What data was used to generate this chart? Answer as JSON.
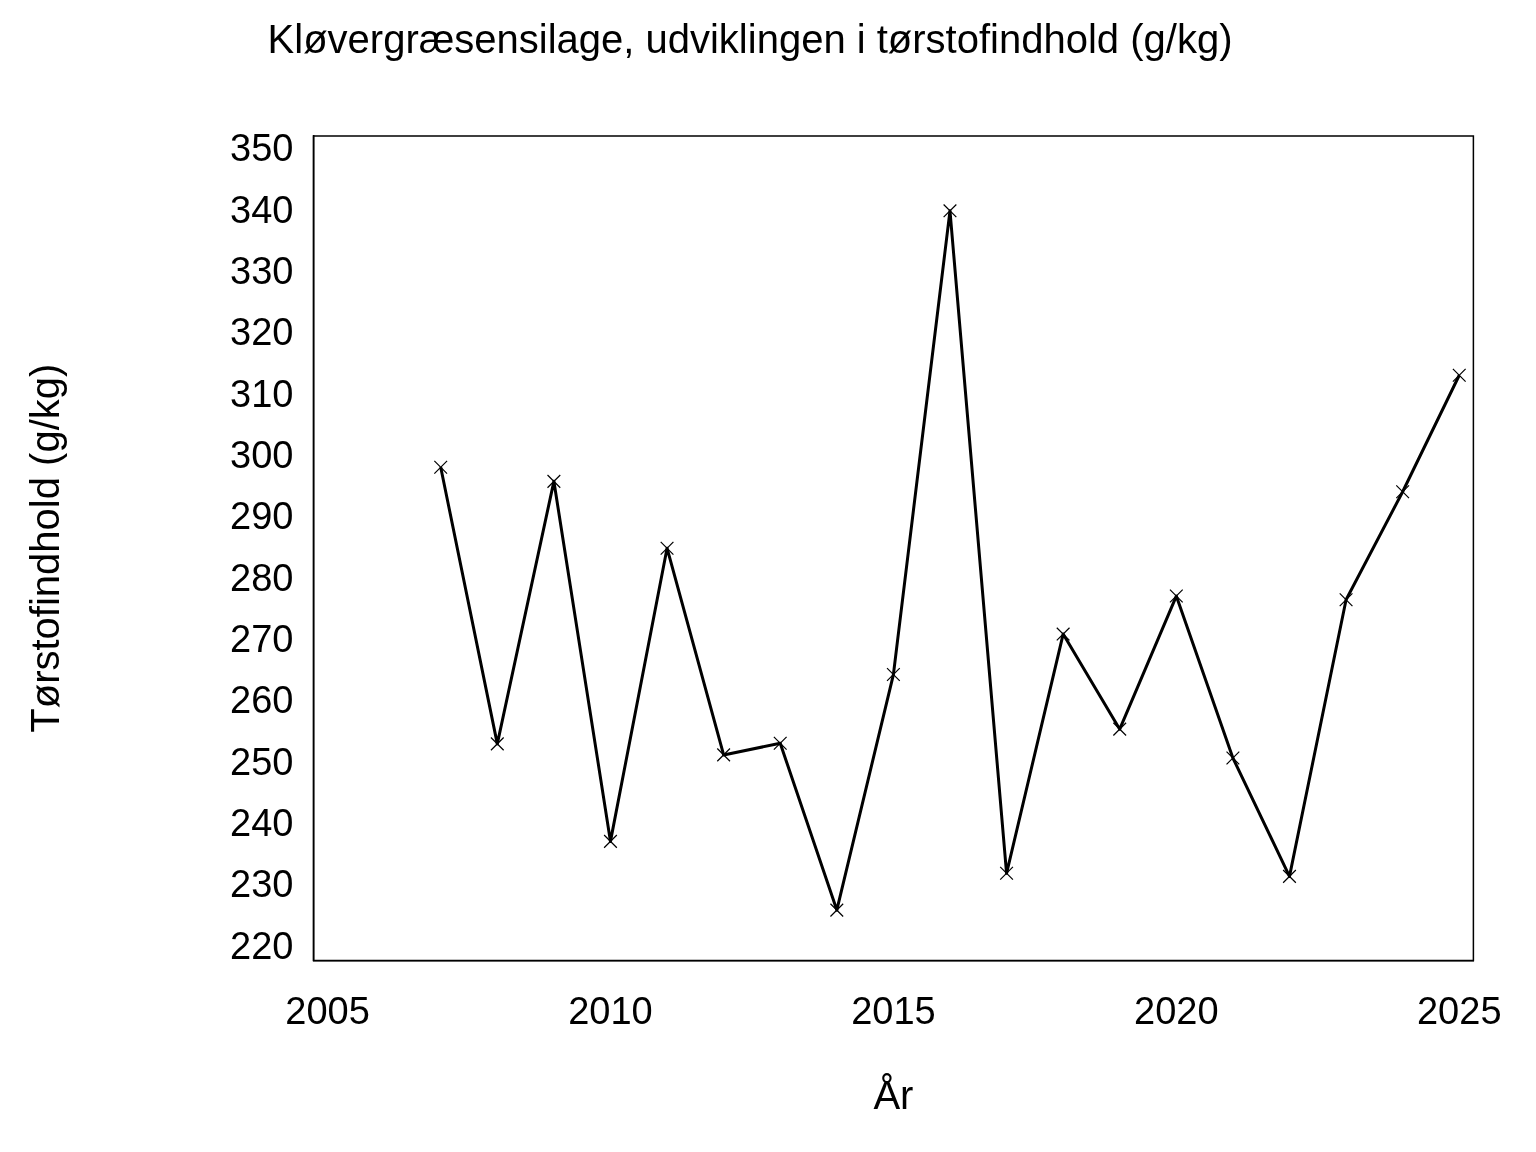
{
  "chart_data": {
    "type": "line",
    "title": "Kløvergræsensilage, udviklingen i tørstofindhold (g/kg)",
    "xlabel": "År",
    "ylabel": "Tørstofindhold (g/kg)",
    "x": [
      2007,
      2008,
      2009,
      2010,
      2011,
      2012,
      2013,
      2014,
      2015,
      2016,
      2017,
      2018,
      2019,
      2020,
      2021,
      2022,
      2023,
      2024,
      2025
    ],
    "series": [
      {
        "color": "#000000",
        "values": [
          298.4,
          253.3,
          296.1,
          237.4,
          285.2,
          251.5,
          253.4,
          226.2,
          264.6,
          340.2,
          232.2,
          271.2,
          255.7,
          277.4,
          251,
          231.7,
          276.8,
          294.4,
          313.4
        ]
      }
    ],
    "xlim": [
      2004.75,
      2025.25
    ],
    "xticks": [
      2005,
      2010,
      2015,
      2020,
      2025
    ],
    "ylim": [
      218,
      352.4
    ],
    "yticks": [
      220,
      230,
      240,
      250,
      260,
      270,
      280,
      290,
      300,
      310,
      320,
      330,
      340,
      350
    ],
    "grid": false,
    "legend": false,
    "marker": "cross",
    "line_style": "solid"
  }
}
